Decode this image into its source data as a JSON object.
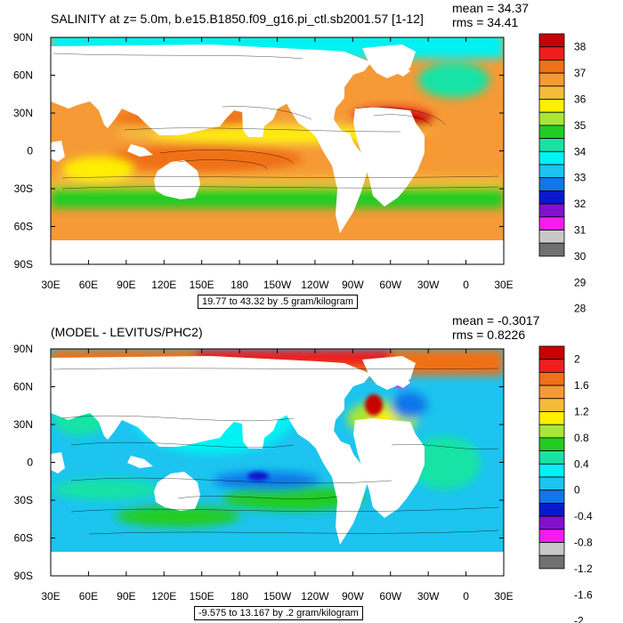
{
  "chart_data": [
    {
      "type": "heatmap",
      "title": "SALINITY at z=    5.0m, b.e15.B1850.f09_g16.pi_ctl.sb2001.57 [1-12]",
      "stats": {
        "mean": "mean = 34.37",
        "rms": "rms = 34.41"
      },
      "note": "19.77 to 43.32 by .5 gram/kilogram",
      "x_ticks": [
        "30E",
        "60E",
        "90E",
        "120E",
        "150E",
        "180",
        "150W",
        "120W",
        "90W",
        "60W",
        "30W",
        "0",
        "30E"
      ],
      "y_ticks": [
        "90N",
        "60N",
        "30N",
        "0",
        "30S",
        "60S",
        "90S"
      ],
      "colorbar": {
        "labels": [
          "38",
          "37",
          "36",
          "35",
          "34",
          "33",
          "32",
          "31",
          "30",
          "29",
          "28"
        ],
        "colors": [
          "#c80000",
          "#ee1e1e",
          "#f07018",
          "#f59a36",
          "#f5bc3c",
          "#ffef00",
          "#a8e635",
          "#22cc22",
          "#18e3a5",
          "#00f2f2",
          "#1cc4ef",
          "#1176ea",
          "#0a18cf",
          "#8211cf",
          "#f41cf0",
          "#c8c8c8",
          "#707070"
        ]
      }
    },
    {
      "type": "heatmap",
      "title": "(MODEL - LEVITUS/PHC2)",
      "stats": {
        "mean": "mean = -0.3017",
        "rms": "rms = 0.8226"
      },
      "note": "-9.575 to 13.167 by .2 gram/kilogram",
      "x_ticks": [
        "30E",
        "60E",
        "90E",
        "120E",
        "150E",
        "180",
        "150W",
        "120W",
        "90W",
        "60W",
        "30W",
        "0",
        "30E"
      ],
      "y_ticks": [
        "90N",
        "60N",
        "30N",
        "0",
        "30S",
        "60S",
        "90S"
      ],
      "colorbar": {
        "labels": [
          "2",
          "1.6",
          "1.2",
          "0.8",
          "0.4",
          "0",
          "-0.4",
          "-0.8",
          "-1.2",
          "-1.6",
          "-2"
        ],
        "colors": [
          "#c80000",
          "#ee1e1e",
          "#f07018",
          "#f59a36",
          "#f5bc3c",
          "#ffef00",
          "#a8e635",
          "#22cc22",
          "#18e3a5",
          "#00f2f2",
          "#1cc4ef",
          "#1176ea",
          "#0a18cf",
          "#8211cf",
          "#f41cf0",
          "#c8c8c8",
          "#707070"
        ]
      }
    }
  ]
}
